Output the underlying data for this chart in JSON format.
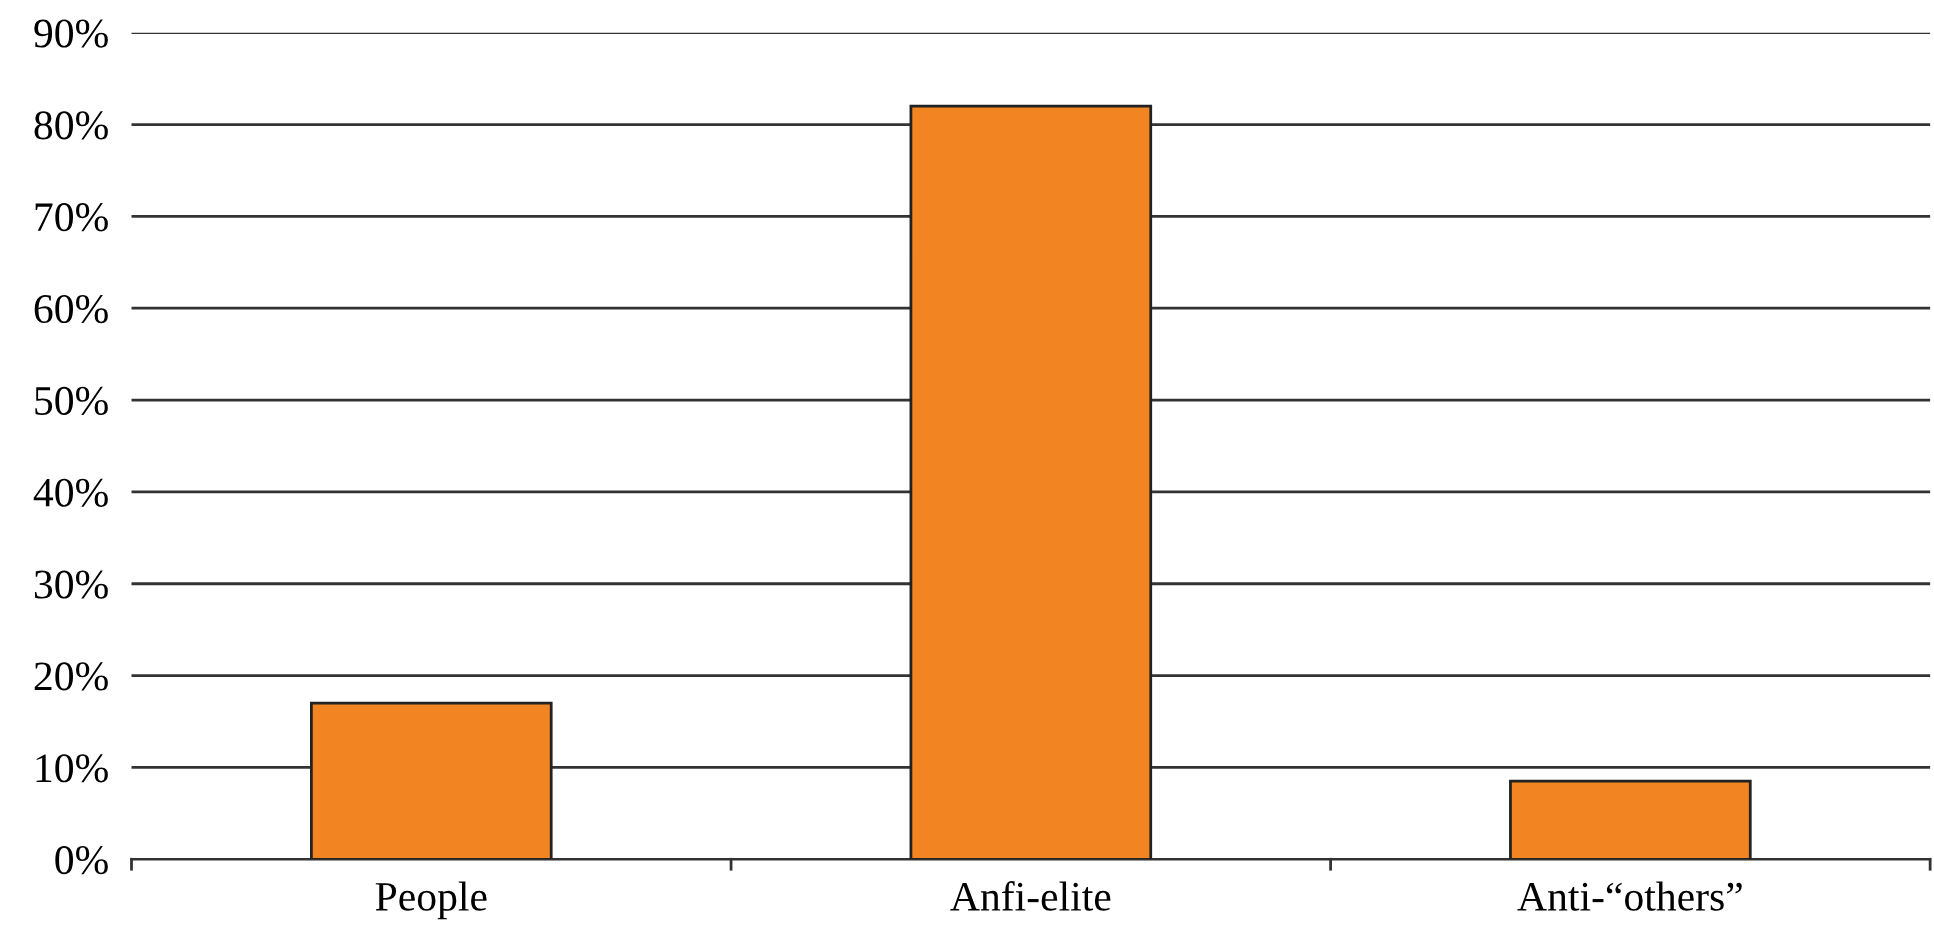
{
  "chart_data": {
    "type": "bar",
    "categories": [
      "People",
      "Anfi-elite",
      "Anti-“others”"
    ],
    "values": [
      17,
      82,
      8.5
    ],
    "color": "#f28522",
    "ylim": [
      0,
      90
    ],
    "yticks": [
      {
        "value": 0,
        "label": "0%"
      },
      {
        "value": 10,
        "label": "10%"
      },
      {
        "value": 20,
        "label": "20%"
      },
      {
        "value": 30,
        "label": "30%"
      },
      {
        "value": 40,
        "label": "40%"
      },
      {
        "value": 50,
        "label": "50%"
      },
      {
        "value": 60,
        "label": "60%"
      },
      {
        "value": 70,
        "label": "70%"
      },
      {
        "value": 80,
        "label": "80%"
      },
      {
        "value": 90,
        "label": "90%"
      }
    ],
    "grid": "y",
    "legend": false
  }
}
